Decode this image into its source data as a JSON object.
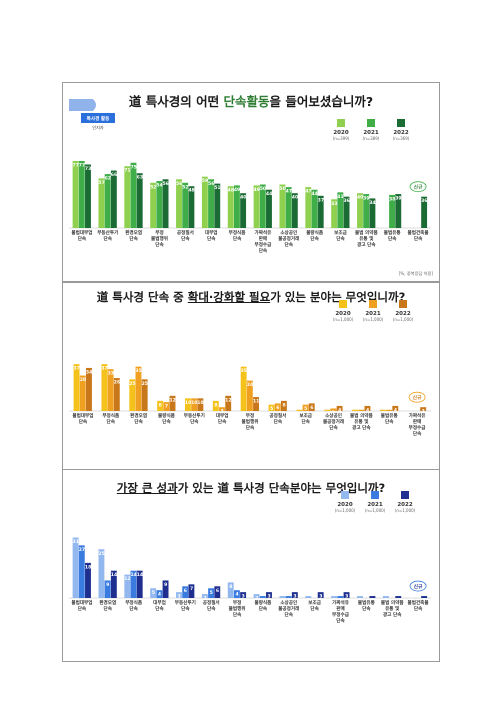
{
  "charts": [
    {
      "title_pre": "道 특사경의 어떤 ",
      "title_hl": "단속활동",
      "title_post": "을 들어보셨습니까?",
      "hl_color": "#2e7d32",
      "badge": [
        "특사경 활동",
        "인지자"
      ],
      "badge_color": "#2a6fdb",
      "legend": [
        {
          "year": "2020",
          "n": "(n=399)",
          "color": "#8fd14f"
        },
        {
          "year": "2021",
          "n": "(n=389)",
          "color": "#3fae49"
        },
        {
          "year": "2022",
          "n": "(n=369)",
          "color": "#1b6b34"
        }
      ],
      "footnote": "[%, 중복응답 허용]",
      "new_tag": "신규",
      "chart_data": {
        "type": "bar",
        "categories": [
          [
            "불법대부업",
            "단속"
          ],
          [
            "부동산투기",
            "단속"
          ],
          [
            "환경오염",
            "단속"
          ],
          [
            "부정",
            "불법행위",
            "단속"
          ],
          [
            "공정질서",
            "단속"
          ],
          [
            "대부업",
            "단속"
          ],
          [
            "부정식품",
            "단속"
          ],
          [
            "가짜석유",
            "판매",
            "부정수급",
            "단속"
          ],
          [
            "소상공인",
            "불공정거래",
            "단속"
          ],
          [
            "불량식품",
            "단속"
          ],
          [
            "보조금",
            "단속"
          ],
          [
            "불법 의약품",
            "유통 및",
            "광고 단속"
          ],
          [
            "불법유통",
            "단속"
          ],
          [
            "불법건축물",
            "단속"
          ]
        ],
        "series": [
          {
            "name": "2020",
            "values": [
              77,
              57,
              71,
              52,
              56,
              59,
              48,
              49,
              50,
              47,
              33,
              40,
              0,
              0
            ]
          },
          {
            "name": "2021",
            "values": [
              77,
              62,
              75,
              54,
              52,
              56,
              49,
              50,
              47,
              44,
              41,
              39,
              38,
              0
            ]
          },
          {
            "name": "2022",
            "values": [
              73,
              66,
              63,
              56,
              48,
              51,
              40,
              44,
              40,
              37,
              36,
              34,
              39,
              36
            ]
          }
        ],
        "ylim": [
          0,
          100
        ]
      }
    },
    {
      "title_pre": "道 특사경 단속 중 ",
      "title_hl": "확대·강화할 필요",
      "title_post": "가 있는 분야는 무엇입니까?",
      "hl_color": "#1a1a1a",
      "legend": [
        {
          "year": "2020",
          "n": "(n=1,000)",
          "color": "#f5c21b"
        },
        {
          "year": "2021",
          "n": "(n=1,000)",
          "color": "#f0a020"
        },
        {
          "year": "2022",
          "n": "(n=1,000)",
          "color": "#c8781a"
        }
      ],
      "new_tag": "신규",
      "chart_data": {
        "type": "bar",
        "categories": [
          [
            "불법대부업",
            "단속"
          ],
          [
            "부정식품",
            "단속"
          ],
          [
            "환경오염",
            "단속"
          ],
          [
            "불량식품",
            "단속"
          ],
          [
            "부동산투기",
            "단속"
          ],
          [
            "대부업",
            "단속"
          ],
          [
            "부정",
            "불법행위",
            "단속"
          ],
          [
            "공정질서",
            "단속"
          ],
          [
            "보조금",
            "단속"
          ],
          [
            "소상공인",
            "불공정거래",
            "단속"
          ],
          [
            "불법 의약품",
            "유통 및",
            "광고 단속"
          ],
          [
            "불법유통",
            "단속"
          ],
          [
            "가짜석유",
            "판매",
            "부정수급",
            "단속"
          ]
        ],
        "series": [
          {
            "name": "2020",
            "values": [
              37,
              37,
              25,
              8,
              10,
              8,
              35,
              5,
              1,
              1,
              1,
              1,
              0
            ]
          },
          {
            "name": "2021",
            "values": [
              28,
              33,
              35,
              7,
              10,
              3,
              24,
              6,
              5,
              2,
              1,
              1,
              0
            ]
          },
          {
            "name": "2022",
            "values": [
              34,
              26,
              25,
              12,
              10,
              12,
              11,
              8,
              6,
              4,
              4,
              4,
              3
            ]
          }
        ],
        "ylim": [
          0,
          60
        ]
      }
    },
    {
      "title_pre": "",
      "title_hl": "가장 큰 성과",
      "title_post": "가 있는 道 특사경 단속분야는 무엇입니까?",
      "hl_color": "#1a1a1a",
      "legend": [
        {
          "year": "2020",
          "n": "(n=1,000)",
          "color": "#93b8f0"
        },
        {
          "year": "2021",
          "n": "(n=1,000)",
          "color": "#3a7be0"
        },
        {
          "year": "2022",
          "n": "(n=1,000)",
          "color": "#1e2f8f"
        }
      ],
      "new_tag": "신규",
      "chart_data": {
        "type": "bar",
        "categories": [
          [
            "불법대부업",
            "단속"
          ],
          [
            "환경오염",
            "단속"
          ],
          [
            "부정식품",
            "단속"
          ],
          [
            "대부업",
            "단속"
          ],
          [
            "부동산투기",
            "단속"
          ],
          [
            "공정질서",
            "단속"
          ],
          [
            "부정",
            "불법행위",
            "단속"
          ],
          [
            "불량식품",
            "단속"
          ],
          [
            "소상공인",
            "불공정거래",
            "단속"
          ],
          [
            "보조금",
            "단속"
          ],
          [
            "가짜석유",
            "판매",
            "부정수급",
            "단속"
          ],
          [
            "불법유통",
            "단속"
          ],
          [
            "불법 의약품",
            "유통 및",
            "광고 단속"
          ],
          [
            "불법건축물",
            "단속"
          ]
        ],
        "series": [
          {
            "name": "2020",
            "values": [
              31,
              25,
              12,
              5,
              3,
              2,
              8,
              2,
              1,
              1,
              1,
              1,
              1,
              0
            ]
          },
          {
            "name": "2021",
            "values": [
              27,
              9,
              14,
              4,
              6,
              5,
              4,
              1,
              1,
              0,
              1,
              0,
              0,
              0
            ]
          },
          {
            "name": "2022",
            "values": [
              18,
              14,
              14,
              9,
              7,
              6,
              3,
              3,
              3,
              3,
              3,
              1,
              1,
              1
            ]
          }
        ],
        "ylim": [
          0,
          40
        ]
      }
    }
  ]
}
